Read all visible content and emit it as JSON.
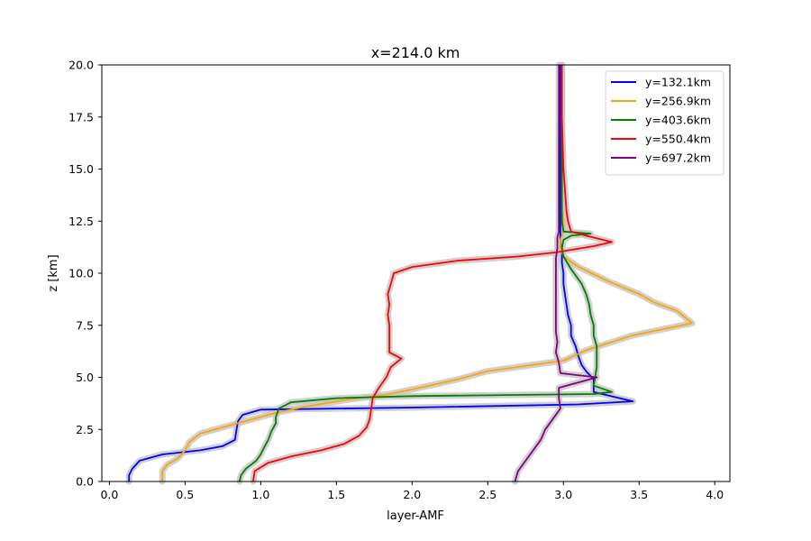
{
  "chart_data": {
    "type": "line",
    "title": "x=214.0 km",
    "xlabel": "layer-AMF",
    "ylabel": "z [km]",
    "xlim": [
      -0.05,
      4.1
    ],
    "ylim": [
      0,
      20
    ],
    "xticks": [
      0.0,
      0.5,
      1.0,
      1.5,
      2.0,
      2.5,
      3.0,
      3.5,
      4.0
    ],
    "xtick_labels": [
      "0.0",
      "0.5",
      "1.0",
      "1.5",
      "2.0",
      "2.5",
      "3.0",
      "3.5",
      "4.0"
    ],
    "yticks": [
      0.0,
      2.5,
      5.0,
      7.5,
      10.0,
      12.5,
      15.0,
      17.5,
      20.0
    ],
    "ytick_labels": [
      "0.0",
      "2.5",
      "5.0",
      "7.5",
      "10.0",
      "12.5",
      "15.0",
      "17.5",
      "20.0"
    ],
    "grid": false,
    "legend_position": "top-right",
    "uncertainty_band_color": "#c8c8c8",
    "series": [
      {
        "name": "y=132.1km",
        "color": "#0000ff",
        "points": [
          [
            0.13,
            0
          ],
          [
            0.13,
            0.3
          ],
          [
            0.15,
            0.6
          ],
          [
            0.2,
            1.0
          ],
          [
            0.35,
            1.3
          ],
          [
            0.6,
            1.5
          ],
          [
            0.75,
            1.7
          ],
          [
            0.83,
            2.0
          ],
          [
            0.84,
            2.5
          ],
          [
            0.85,
            2.9
          ],
          [
            0.88,
            3.2
          ],
          [
            1.0,
            3.45
          ],
          [
            2.0,
            3.55
          ],
          [
            3.1,
            3.7
          ],
          [
            3.46,
            3.85
          ],
          [
            3.2,
            4.3
          ],
          [
            3.2,
            4.6
          ],
          [
            3.2,
            4.9
          ],
          [
            3.15,
            5.3
          ],
          [
            3.12,
            5.6
          ],
          [
            3.1,
            6.0
          ],
          [
            3.08,
            6.5
          ],
          [
            3.05,
            7.0
          ],
          [
            3.05,
            7.5
          ],
          [
            3.03,
            8.0
          ],
          [
            3.02,
            8.5
          ],
          [
            3.01,
            9.0
          ],
          [
            3.0,
            9.5
          ],
          [
            3.0,
            10.0
          ],
          [
            2.99,
            10.5
          ],
          [
            2.99,
            11.0
          ],
          [
            2.98,
            11.5
          ],
          [
            2.98,
            12.0
          ],
          [
            2.98,
            13.0
          ],
          [
            2.98,
            15.0
          ],
          [
            2.98,
            17.5
          ],
          [
            2.98,
            20.0
          ]
        ]
      },
      {
        "name": "y=256.9km",
        "color": "#ffa500",
        "points": [
          [
            0.35,
            0
          ],
          [
            0.35,
            0.5
          ],
          [
            0.38,
            0.8
          ],
          [
            0.45,
            1.1
          ],
          [
            0.5,
            1.5
          ],
          [
            0.53,
            1.9
          ],
          [
            0.6,
            2.3
          ],
          [
            0.75,
            2.6
          ],
          [
            0.95,
            3.0
          ],
          [
            1.1,
            3.3
          ],
          [
            1.3,
            3.6
          ],
          [
            1.55,
            3.9
          ],
          [
            1.85,
            4.2
          ],
          [
            2.05,
            4.5
          ],
          [
            2.3,
            4.9
          ],
          [
            2.5,
            5.3
          ],
          [
            2.8,
            5.6
          ],
          [
            3.0,
            5.8
          ],
          [
            3.15,
            6.3
          ],
          [
            3.45,
            7.0
          ],
          [
            3.85,
            7.6
          ],
          [
            3.75,
            8.2
          ],
          [
            3.6,
            8.6
          ],
          [
            3.5,
            9.0
          ],
          [
            3.3,
            9.6
          ],
          [
            3.1,
            10.3
          ],
          [
            3.0,
            10.8
          ],
          [
            2.98,
            11.2
          ],
          [
            2.98,
            11.6
          ],
          [
            3.0,
            12.0
          ],
          [
            3.0,
            12.5
          ],
          [
            2.99,
            13.0
          ],
          [
            2.99,
            15.0
          ],
          [
            2.99,
            17.5
          ],
          [
            2.99,
            20.0
          ]
        ]
      },
      {
        "name": "y=403.6km",
        "color": "#008000",
        "points": [
          [
            0.86,
            0
          ],
          [
            0.87,
            0.3
          ],
          [
            0.9,
            0.6
          ],
          [
            0.97,
            1.0
          ],
          [
            1.0,
            1.3
          ],
          [
            1.02,
            1.6
          ],
          [
            1.05,
            2.0
          ],
          [
            1.07,
            2.4
          ],
          [
            1.1,
            2.8
          ],
          [
            1.1,
            3.1
          ],
          [
            1.12,
            3.5
          ],
          [
            1.2,
            3.8
          ],
          [
            1.5,
            4.0
          ],
          [
            2.0,
            4.1
          ],
          [
            3.2,
            4.2
          ],
          [
            3.32,
            4.3
          ],
          [
            3.2,
            4.6
          ],
          [
            3.21,
            5.0
          ],
          [
            3.22,
            5.5
          ],
          [
            3.22,
            6.0
          ],
          [
            3.22,
            6.5
          ],
          [
            3.2,
            7.0
          ],
          [
            3.2,
            7.5
          ],
          [
            3.18,
            8.0
          ],
          [
            3.17,
            8.5
          ],
          [
            3.15,
            9.0
          ],
          [
            3.12,
            9.5
          ],
          [
            3.05,
            10.2
          ],
          [
            3.0,
            10.8
          ],
          [
            2.99,
            11.2
          ],
          [
            3.0,
            11.6
          ],
          [
            3.05,
            11.8
          ],
          [
            3.18,
            11.9
          ],
          [
            3.0,
            12.0
          ],
          [
            2.99,
            12.5
          ],
          [
            2.99,
            13.0
          ],
          [
            2.99,
            15.0
          ],
          [
            2.99,
            17.5
          ],
          [
            2.99,
            20.0
          ]
        ]
      },
      {
        "name": "y=550.4km",
        "color": "#ff0000",
        "points": [
          [
            0.95,
            0
          ],
          [
            0.96,
            0.5
          ],
          [
            1.05,
            0.9
          ],
          [
            1.2,
            1.2
          ],
          [
            1.4,
            1.5
          ],
          [
            1.55,
            1.8
          ],
          [
            1.65,
            2.2
          ],
          [
            1.7,
            2.6
          ],
          [
            1.72,
            3.0
          ],
          [
            1.73,
            3.5
          ],
          [
            1.74,
            4.0
          ],
          [
            1.78,
            4.5
          ],
          [
            1.83,
            5.0
          ],
          [
            1.86,
            5.5
          ],
          [
            1.93,
            5.9
          ],
          [
            1.85,
            6.2
          ],
          [
            1.85,
            7.0
          ],
          [
            1.85,
            7.5
          ],
          [
            1.84,
            8.0
          ],
          [
            1.85,
            8.5
          ],
          [
            1.84,
            9.0
          ],
          [
            1.86,
            9.5
          ],
          [
            1.88,
            10.0
          ],
          [
            2.0,
            10.3
          ],
          [
            2.3,
            10.6
          ],
          [
            2.7,
            10.8
          ],
          [
            2.95,
            11.0
          ],
          [
            3.2,
            11.3
          ],
          [
            3.32,
            11.5
          ],
          [
            3.15,
            11.8
          ],
          [
            3.05,
            12.0
          ],
          [
            3.03,
            12.5
          ],
          [
            3.02,
            13.0
          ],
          [
            3.0,
            15.0
          ],
          [
            2.99,
            17.5
          ],
          [
            2.99,
            20.0
          ]
        ]
      },
      {
        "name": "y=697.2km",
        "color": "#800080",
        "points": [
          [
            2.68,
            0
          ],
          [
            2.7,
            0.5
          ],
          [
            2.75,
            1.0
          ],
          [
            2.8,
            1.5
          ],
          [
            2.85,
            2.0
          ],
          [
            2.88,
            2.5
          ],
          [
            2.93,
            3.0
          ],
          [
            2.98,
            3.5
          ],
          [
            2.97,
            4.0
          ],
          [
            2.97,
            4.5
          ],
          [
            3.22,
            5.0
          ],
          [
            2.98,
            5.2
          ],
          [
            2.97,
            5.7
          ],
          [
            2.95,
            6.2
          ],
          [
            2.96,
            6.7
          ],
          [
            2.95,
            7.2
          ],
          [
            2.95,
            7.7
          ],
          [
            2.95,
            8.2
          ],
          [
            2.95,
            8.7
          ],
          [
            2.95,
            9.2
          ],
          [
            2.95,
            9.7
          ],
          [
            2.95,
            10.2
          ],
          [
            2.95,
            10.7
          ],
          [
            2.96,
            11.2
          ],
          [
            2.96,
            11.7
          ],
          [
            2.97,
            12.0
          ],
          [
            2.97,
            12.5
          ],
          [
            2.97,
            13.0
          ],
          [
            2.97,
            15.0
          ],
          [
            2.97,
            17.5
          ],
          [
            2.97,
            20.0
          ]
        ]
      }
    ]
  }
}
